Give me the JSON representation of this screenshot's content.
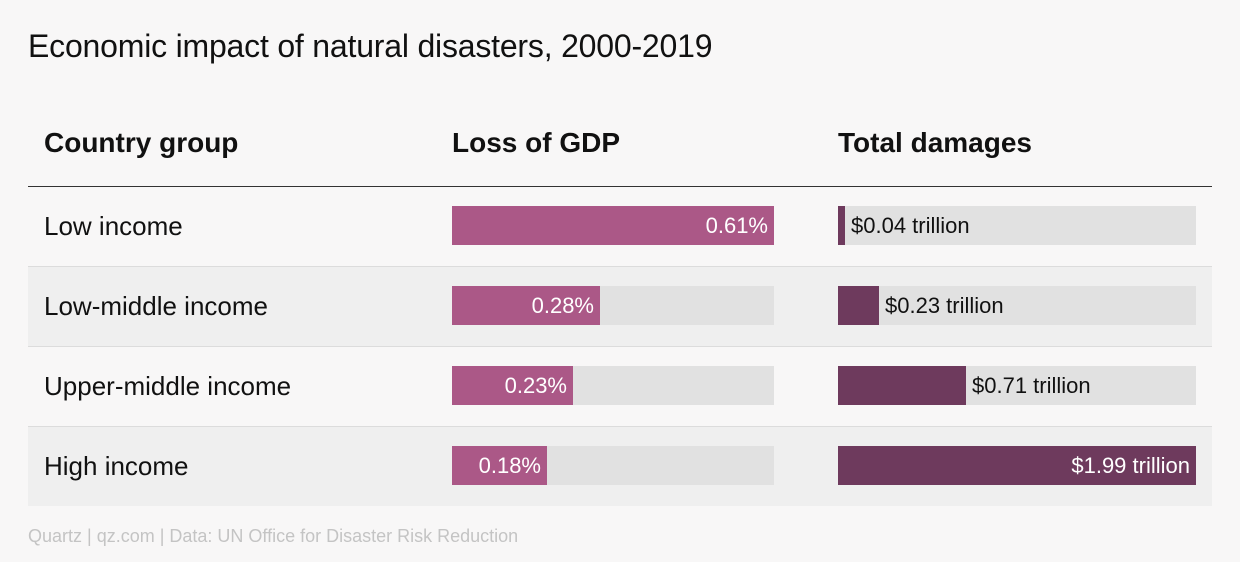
{
  "title": "Economic impact of natural disasters, 2000-2019",
  "columns": {
    "group": "Country group",
    "gdp": "Loss of GDP",
    "damages": "Total damages"
  },
  "footer": "Quartz | qz.com | Data: UN Office for Disaster Risk Reduction",
  "colors": {
    "gdp_bar": "#ab5887",
    "damages_bar": "#6e3a5d",
    "track": "#e1e1e1"
  },
  "chart_data": {
    "type": "table",
    "title": "Economic impact of natural disasters, 2000-2019",
    "categories": [
      "Low income",
      "Low-middle income",
      "Upper-middle income",
      "High income"
    ],
    "series": [
      {
        "name": "Loss of GDP",
        "values": [
          0.61,
          0.28,
          0.23,
          0.18
        ],
        "labels": [
          "0.61%",
          "0.28%",
          "0.23%",
          "0.18%"
        ],
        "max": 0.61
      },
      {
        "name": "Total damages",
        "values": [
          0.04,
          0.23,
          0.71,
          1.99
        ],
        "labels": [
          "$0.04 trillion",
          "$0.23 trillion",
          "$0.71 trillion",
          "$1.99 trillion"
        ],
        "max": 1.99
      }
    ]
  }
}
